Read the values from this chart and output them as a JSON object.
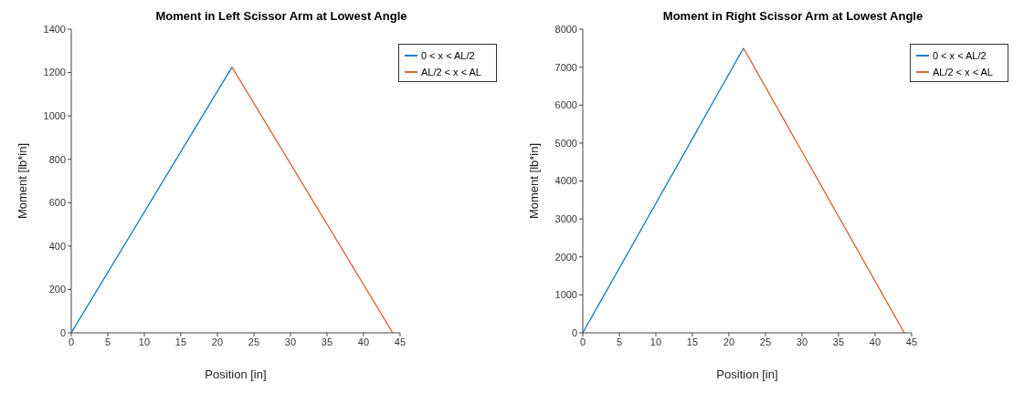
{
  "chart_data": [
    {
      "type": "line",
      "title": "Moment in Left Scissor Arm at Lowest Angle",
      "xlabel": "Position [in]",
      "ylabel": "Moment [lb*in]",
      "xlim": [
        0,
        45
      ],
      "xticks": [
        0,
        5,
        10,
        15,
        20,
        25,
        30,
        35,
        40,
        45
      ],
      "ylim": [
        0,
        1400
      ],
      "yticks": [
        0,
        200,
        400,
        600,
        800,
        1000,
        1200,
        1400
      ],
      "grid": false,
      "legend": "top right",
      "series": [
        {
          "name": "0 < x < AL/2",
          "color": "#0072bd",
          "x": [
            0,
            22
          ],
          "values": [
            0,
            1225
          ]
        },
        {
          "name": "AL/2 < x < AL",
          "color": "#d95319",
          "x": [
            22,
            44
          ],
          "values": [
            1225,
            0
          ]
        }
      ]
    },
    {
      "type": "line",
      "title": "Moment in Right Scissor Arm at Lowest Angle",
      "xlabel": "Position [in]",
      "ylabel": "Moment [lb*in]",
      "xlim": [
        0,
        45
      ],
      "xticks": [
        0,
        5,
        10,
        15,
        20,
        25,
        30,
        35,
        40,
        45
      ],
      "ylim": [
        0,
        8000
      ],
      "yticks": [
        0,
        1000,
        2000,
        3000,
        4000,
        5000,
        6000,
        7000,
        8000
      ],
      "grid": false,
      "legend": "top right",
      "series": [
        {
          "name": "0 < x < AL/2",
          "color": "#0072bd",
          "x": [
            0,
            22
          ],
          "values": [
            0,
            7500
          ]
        },
        {
          "name": "AL/2 < x < AL",
          "color": "#d95319",
          "x": [
            22,
            44
          ],
          "values": [
            7500,
            0
          ]
        }
      ]
    }
  ]
}
